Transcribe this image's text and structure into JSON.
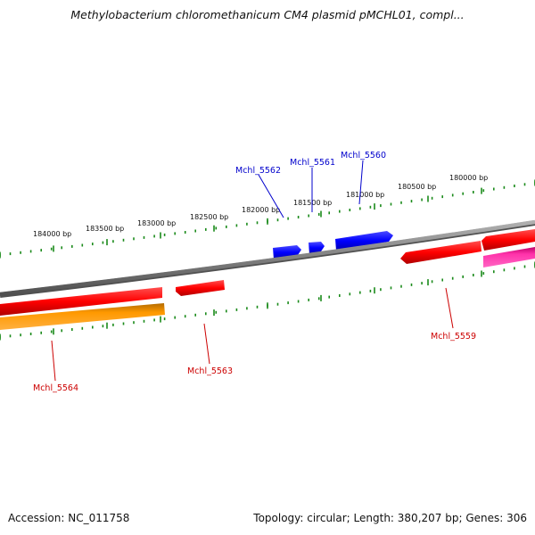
{
  "title": "Methylobacterium chloromethanicum CM4 plasmid pMCHL01, compl...",
  "footer": {
    "accession": "Accession: NC_011758",
    "summary": "Topology: circular; Length: 380,207 bp; Genes: 306"
  },
  "outer_ruler_labels": [
    "184000 bp",
    "183500 bp",
    "183000 bp",
    "182500 bp",
    "182000 bp",
    "181500 bp",
    "181000 bp",
    "180500 bp",
    "180000 bp"
  ],
  "gene_labels": [
    {
      "id": "mchl5562",
      "text": "Mchl_5562",
      "color": "#0000cc"
    },
    {
      "id": "mchl5561",
      "text": "Mchl_5561",
      "color": "#0000cc"
    },
    {
      "id": "mchl5560",
      "text": "Mchl_5560",
      "color": "#0000cc"
    },
    {
      "id": "mchl5559",
      "text": "Mchl_5559",
      "color": "#cc0000"
    },
    {
      "id": "mchl5563",
      "text": "Mchl_5563",
      "color": "#cc0000"
    },
    {
      "id": "mchl5564",
      "text": "Mchl_5564",
      "color": "#cc0000"
    }
  ],
  "colors": {
    "backbone": "#808080",
    "ticks": "#1a8a1a",
    "forward_gene": "#0000ff",
    "reverse_gene": "#ff0000",
    "orange_feature": "#ff9900",
    "pink_feature": "#ff33aa"
  }
}
